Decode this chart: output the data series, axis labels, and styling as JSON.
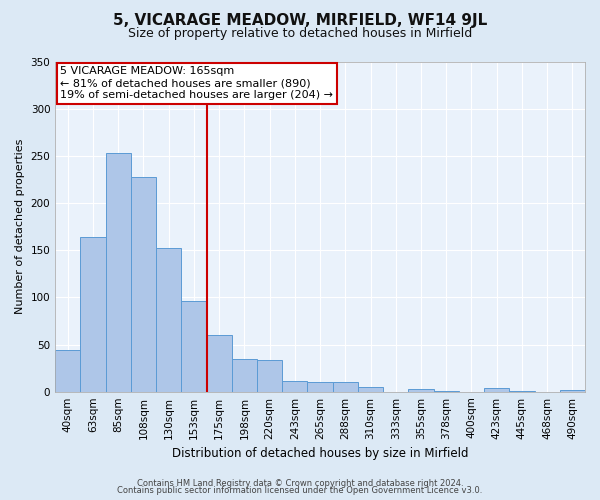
{
  "title": "5, VICARAGE MEADOW, MIRFIELD, WF14 9JL",
  "subtitle": "Size of property relative to detached houses in Mirfield",
  "xlabel": "Distribution of detached houses by size in Mirfield",
  "ylabel": "Number of detached properties",
  "bar_labels": [
    "40sqm",
    "63sqm",
    "85sqm",
    "108sqm",
    "130sqm",
    "153sqm",
    "175sqm",
    "198sqm",
    "220sqm",
    "243sqm",
    "265sqm",
    "288sqm",
    "310sqm",
    "333sqm",
    "355sqm",
    "378sqm",
    "400sqm",
    "423sqm",
    "445sqm",
    "468sqm",
    "490sqm"
  ],
  "bar_values": [
    44,
    164,
    253,
    228,
    152,
    96,
    60,
    35,
    34,
    11,
    10,
    10,
    5,
    0,
    3,
    1,
    0,
    4,
    1,
    0,
    2
  ],
  "bar_color": "#aec6e8",
  "bar_edge_color": "#5b9bd5",
  "vline_x_index": 5,
  "vline_color": "#cc0000",
  "annotation_text": "5 VICARAGE MEADOW: 165sqm\n← 81% of detached houses are smaller (890)\n19% of semi-detached houses are larger (204) →",
  "annotation_box_color": "#ffffff",
  "annotation_box_edge_color": "#cc0000",
  "ylim": [
    0,
    350
  ],
  "yticks": [
    0,
    50,
    100,
    150,
    200,
    250,
    300,
    350
  ],
  "footer1": "Contains HM Land Registry data © Crown copyright and database right 2024.",
  "footer2": "Contains public sector information licensed under the Open Government Licence v3.0.",
  "bg_color": "#dce9f5",
  "plot_bg_color": "#eaf2fb",
  "grid_color": "#ffffff",
  "title_fontsize": 11,
  "subtitle_fontsize": 9,
  "xlabel_fontsize": 8.5,
  "ylabel_fontsize": 8,
  "tick_fontsize": 7.5,
  "annotation_fontsize": 8,
  "footer_fontsize": 6
}
